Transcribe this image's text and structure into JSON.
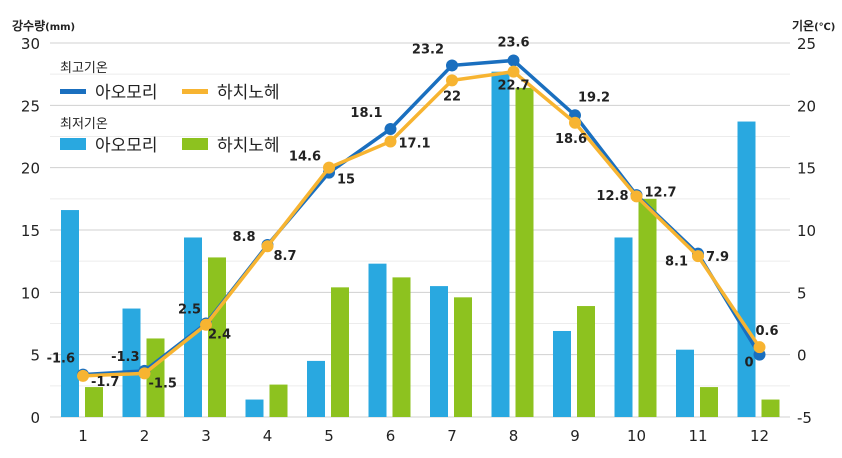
{
  "chart_data": {
    "type": "bar+line",
    "y_left_title": "강수량",
    "y_left_unit": "(mm)",
    "y_right_title": "기온",
    "y_right_unit": "(℃)",
    "ylim_left": [
      0,
      30
    ],
    "ylim_right": [
      -5,
      25
    ],
    "yticks_left": [
      "0",
      "5",
      "10",
      "15",
      "20",
      "25",
      "30"
    ],
    "yticks_right": [
      "-5",
      "0",
      "5",
      "10",
      "15",
      "20",
      "25"
    ],
    "categories": [
      "1",
      "2",
      "3",
      "4",
      "5",
      "6",
      "7",
      "8",
      "9",
      "10",
      "11",
      "12"
    ],
    "grid": true,
    "legend_placement": "top-left",
    "legend": {
      "group1_title": "최고기온",
      "group2_title": "최저기온"
    },
    "line_series": [
      {
        "name": "아오모리",
        "color": "#1a6fbf",
        "axis": "right",
        "values": [
          -1.6,
          -1.3,
          2.5,
          8.8,
          14.6,
          18.1,
          23.2,
          23.6,
          19.2,
          12.8,
          8.1,
          0
        ],
        "labels": [
          "-1.6",
          "-1.3",
          "2.5",
          "8.8",
          "14.6",
          "18.1",
          "23.2",
          "23.6",
          "19.2",
          "12.8",
          "8.1",
          "0"
        ]
      },
      {
        "name": "하치노헤",
        "color": "#f7b431",
        "axis": "right",
        "values": [
          -1.7,
          -1.5,
          2.4,
          8.7,
          15,
          17.1,
          22,
          22.7,
          18.6,
          12.7,
          7.9,
          0.6
        ],
        "labels": [
          "-1.7",
          "-1.5",
          "2.4",
          "8.7",
          "15",
          "17.1",
          "22",
          "22.7",
          "18.6",
          "12.7",
          "7.9",
          "0.6"
        ]
      }
    ],
    "bar_series": [
      {
        "name": "아오모리",
        "color": "#29a8e0",
        "axis": "left",
        "values": [
          16.6,
          8.7,
          14.4,
          1.4,
          4.5,
          12.3,
          10.5,
          27.7,
          6.9,
          14.4,
          5.4,
          23.7
        ]
      },
      {
        "name": "하치노헤",
        "color": "#8dc21f",
        "axis": "left",
        "values": [
          2.4,
          6.3,
          12.8,
          2.6,
          10.4,
          11.2,
          9.6,
          26.4,
          8.9,
          17.5,
          2.4,
          1.4
        ]
      }
    ]
  }
}
